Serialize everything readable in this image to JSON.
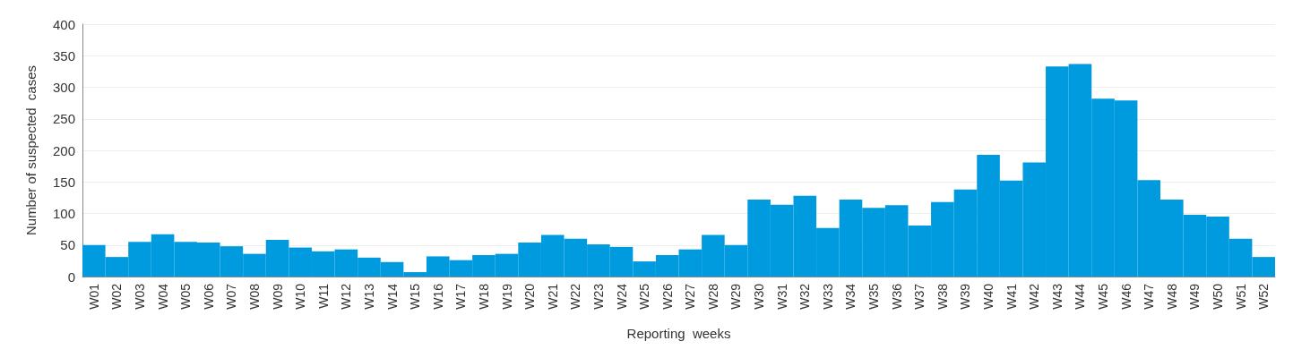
{
  "chart_data": {
    "type": "bar",
    "xlabel": "Reporting  weeks",
    "ylabel": "Number of suspected  cases",
    "categories": [
      "W01",
      "W02",
      "W03",
      "W04",
      "W05",
      "W06",
      "W07",
      "W08",
      "W09",
      "W10",
      "W11",
      "W12",
      "W13",
      "W14",
      "W15",
      "W16",
      "W17",
      "W18",
      "W19",
      "W20",
      "W21",
      "W22",
      "W23",
      "W24",
      "W25",
      "W26",
      "W27",
      "W28",
      "W29",
      "W30",
      "W31",
      "W32",
      "W33",
      "W34",
      "W35",
      "W36",
      "W37",
      "W38",
      "W39",
      "W40",
      "W41",
      "W42",
      "W43",
      "W44",
      "W45",
      "W46",
      "W47",
      "W48",
      "W49",
      "W50",
      "W51",
      "W52"
    ],
    "values": [
      50,
      31,
      55,
      67,
      55,
      54,
      48,
      36,
      58,
      46,
      40,
      43,
      30,
      23,
      7,
      32,
      26,
      34,
      36,
      54,
      66,
      60,
      51,
      47,
      24,
      34,
      43,
      66,
      50,
      122,
      114,
      128,
      77,
      122,
      109,
      113,
      81,
      118,
      138,
      193,
      152,
      181,
      333,
      337,
      282,
      279,
      153,
      122,
      98,
      95,
      60,
      31
    ],
    "color": "#009ade",
    "ylim": [
      0,
      400
    ],
    "yticks": [
      0,
      50,
      100,
      150,
      200,
      250,
      300,
      350,
      400
    ],
    "grid": "y"
  }
}
